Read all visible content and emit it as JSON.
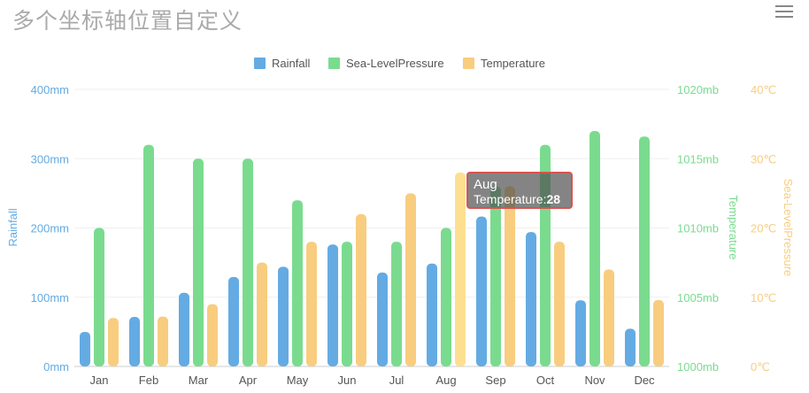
{
  "title": "多个坐标轴位置自定义",
  "menu_icon": "hamburger-menu-icon",
  "chart_data": {
    "type": "bar",
    "categories": [
      "Jan",
      "Feb",
      "Mar",
      "Apr",
      "May",
      "Jun",
      "Jul",
      "Aug",
      "Sep",
      "Oct",
      "Nov",
      "Dec"
    ],
    "series": [
      {
        "name": "Rainfall",
        "color": "#64abe3",
        "axis": "rainfall",
        "values": [
          49.9,
          71.5,
          106.4,
          129.2,
          144.0,
          176.0,
          135.6,
          148.5,
          216.4,
          194.1,
          95.6,
          54.4
        ]
      },
      {
        "name": "Sea-LevelPressure",
        "color": "#7adb8f",
        "axis": "pressure",
        "values": [
          1010,
          1016,
          1015,
          1015,
          1012,
          1009,
          1009,
          1010,
          1013,
          1016,
          1017,
          1016.6
        ]
      },
      {
        "name": "Temperature",
        "color": "#f8cd7f",
        "axis": "temperature",
        "values": [
          7.0,
          7.2,
          9.0,
          15.0,
          18.0,
          22.0,
          25.0,
          28.0,
          26.0,
          18.0,
          14.0,
          9.6
        ]
      }
    ],
    "axes": {
      "rainfall": {
        "title": "Rainfall",
        "min": 0,
        "max": 400,
        "ticks": [
          "0mm",
          "100mm",
          "200mm",
          "300mm",
          "400mm"
        ],
        "color": "#64abe3"
      },
      "pressure": {
        "title": "Temperature",
        "min": 1000,
        "max": 1020,
        "ticks": [
          "1000mb",
          "1005mb",
          "1010mb",
          "1015mb",
          "1020mb"
        ],
        "color": "#7adb8f"
      },
      "temperature": {
        "title": "Sea-LevelPressure",
        "min": 0,
        "max": 40,
        "ticks": [
          "0℃",
          "10℃",
          "20℃",
          "30℃",
          "40℃"
        ],
        "color": "#f8cd7f"
      }
    },
    "legend_position": "top-center",
    "tooltip": {
      "category": "Aug",
      "series": "Temperature",
      "label": "Temperature:",
      "value": "28"
    },
    "highlight_index": 7
  }
}
